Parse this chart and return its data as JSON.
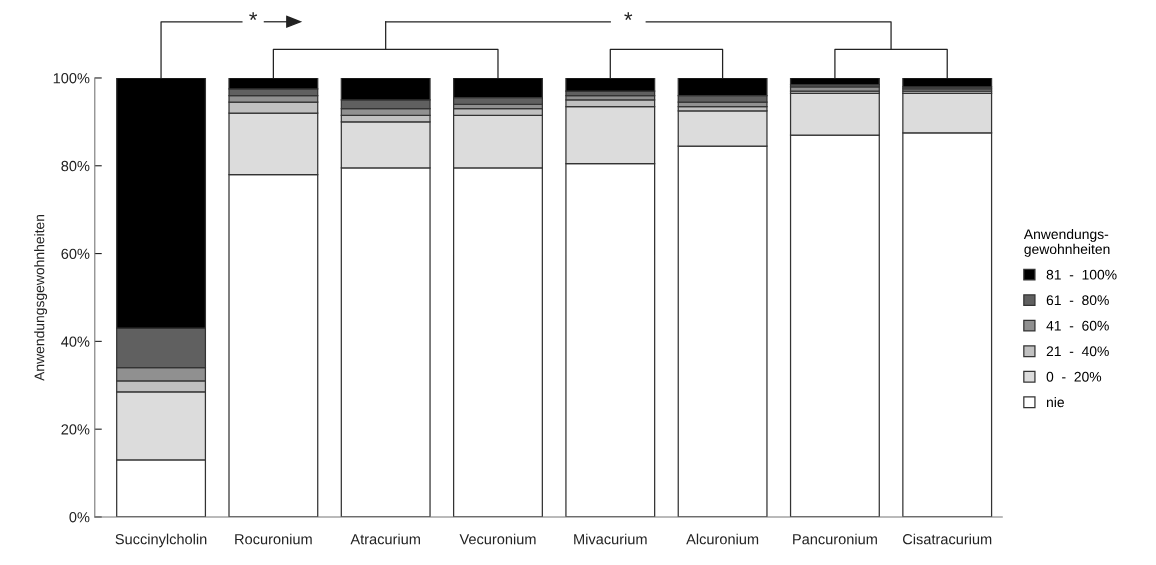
{
  "chart_data": {
    "type": "bar",
    "stacked": true,
    "ylabel": "Anwendungsgewohnheiten",
    "legend_title": "Anwendungs-\ngewohnheiten",
    "categories": [
      "Succinylcholin",
      "Rocuronium",
      "Atracurium",
      "Vecuronium",
      "Mivacurium",
      "Alcuronium",
      "Pancuronium",
      "Cisatracurium"
    ],
    "series": [
      {
        "name": "nie",
        "color": "#ffffff",
        "values": [
          13,
          78,
          79.5,
          79.5,
          80.5,
          84.5,
          87,
          87.5
        ]
      },
      {
        "name": "0  -  20%",
        "color": "#dcdcdc",
        "values": [
          15.5,
          14,
          10.5,
          12,
          13,
          8,
          9.5,
          9
        ]
      },
      {
        "name": "21  -  40%",
        "color": "#c0c0c0",
        "values": [
          2.5,
          2.5,
          1.5,
          1.5,
          1.5,
          1,
          0.5,
          0.5
        ]
      },
      {
        "name": "41  -  60%",
        "color": "#909090",
        "values": [
          3,
          1.5,
          1.5,
          1,
          1,
          1,
          1,
          0.5
        ]
      },
      {
        "name": "61  -  80%",
        "color": "#606060",
        "values": [
          9,
          1.5,
          2,
          1.5,
          1,
          1.5,
          0.5,
          0.5
        ]
      },
      {
        "name": "81  -  100%",
        "color": "#000000",
        "values": [
          57,
          2.5,
          5,
          4.5,
          3,
          4,
          1.5,
          2
        ]
      }
    ],
    "ylim": [
      0,
      100
    ],
    "yticks": [
      {
        "value": 0,
        "label": "0%"
      },
      {
        "value": 20,
        "label": "20%"
      },
      {
        "value": 40,
        "label": "40%"
      },
      {
        "value": 60,
        "label": "60%"
      },
      {
        "value": 80,
        "label": "80%"
      },
      {
        "value": 100,
        "label": "100%"
      }
    ],
    "annotations": [
      "*",
      "*"
    ],
    "legend": "right",
    "grid": false
  }
}
